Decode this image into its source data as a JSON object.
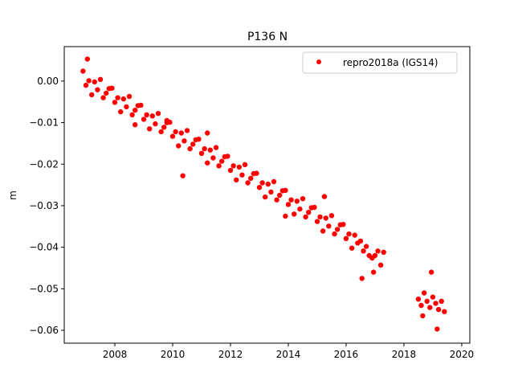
{
  "chart_data": {
    "type": "scatter",
    "title": "P136 N",
    "xlabel": "",
    "ylabel": "m",
    "xlim": [
      2006.25,
      2020.28
    ],
    "ylim": [
      -0.0631,
      0.0083
    ],
    "xticks": [
      2008,
      2010,
      2012,
      2014,
      2016,
      2018,
      2020
    ],
    "xtick_labels": [
      "2008",
      "2010",
      "2012",
      "2014",
      "2016",
      "2018",
      "2020"
    ],
    "yticks": [
      0.0,
      -0.01,
      -0.02,
      -0.03,
      -0.04,
      -0.05,
      -0.06
    ],
    "ytick_labels": [
      "0.00",
      "−0.01",
      "−0.02",
      "−0.03",
      "−0.04",
      "−0.05",
      "−0.06"
    ],
    "grid": false,
    "legend": {
      "placement": "top-right",
      "entries": [
        "repro2018a (IGS14)"
      ]
    },
    "series": [
      {
        "name": "repro2018a (IGS14)",
        "color": "#ff0000",
        "marker": "dot",
        "points": [
          [
            2006.9,
            0.0024
          ],
          [
            2007.0,
            -0.001
          ],
          [
            2007.1,
            0.0001
          ],
          [
            2007.2,
            -0.0033
          ],
          [
            2007.3,
            -0.0002
          ],
          [
            2007.4,
            -0.0021
          ],
          [
            2007.5,
            0.0004
          ],
          [
            2007.6,
            -0.004
          ],
          [
            2007.7,
            -0.0029
          ],
          [
            2007.8,
            -0.0018
          ],
          [
            2007.9,
            -0.0017
          ],
          [
            2008.0,
            -0.0051
          ],
          [
            2008.1,
            -0.004
          ],
          [
            2008.2,
            -0.0074
          ],
          [
            2008.3,
            -0.0043
          ],
          [
            2008.4,
            -0.0062
          ],
          [
            2008.5,
            -0.0037
          ],
          [
            2008.6,
            -0.0081
          ],
          [
            2008.7,
            -0.007
          ],
          [
            2008.8,
            -0.0059
          ],
          [
            2008.9,
            -0.0058
          ],
          [
            2009.0,
            -0.0092
          ],
          [
            2009.1,
            -0.0081
          ],
          [
            2009.2,
            -0.0115
          ],
          [
            2009.3,
            -0.0084
          ],
          [
            2009.4,
            -0.0103
          ],
          [
            2009.5,
            -0.0078
          ],
          [
            2009.6,
            -0.0122
          ],
          [
            2009.7,
            -0.0111
          ],
          [
            2009.8,
            -0.01
          ],
          [
            2009.9,
            -0.0099
          ],
          [
            2010.0,
            -0.0133
          ],
          [
            2010.1,
            -0.0122
          ],
          [
            2010.2,
            -0.0156
          ],
          [
            2010.3,
            -0.0125
          ],
          [
            2010.4,
            -0.0144
          ],
          [
            2010.5,
            -0.0119
          ],
          [
            2010.6,
            -0.0163
          ],
          [
            2010.7,
            -0.0152
          ],
          [
            2010.8,
            -0.0141
          ],
          [
            2010.9,
            -0.014
          ],
          [
            2011.0,
            -0.0174
          ],
          [
            2011.1,
            -0.0163
          ],
          [
            2011.2,
            -0.0197
          ],
          [
            2011.3,
            -0.0166
          ],
          [
            2011.4,
            -0.0185
          ],
          [
            2011.5,
            -0.016
          ],
          [
            2011.6,
            -0.0204
          ],
          [
            2011.7,
            -0.0193
          ],
          [
            2011.8,
            -0.0182
          ],
          [
            2011.9,
            -0.0181
          ],
          [
            2012.0,
            -0.0215
          ],
          [
            2012.1,
            -0.0204
          ],
          [
            2012.2,
            -0.0238
          ],
          [
            2012.3,
            -0.0207
          ],
          [
            2012.4,
            -0.0226
          ],
          [
            2012.5,
            -0.0201
          ],
          [
            2012.6,
            -0.0245
          ],
          [
            2012.7,
            -0.0234
          ],
          [
            2012.8,
            -0.0223
          ],
          [
            2012.9,
            -0.0222
          ],
          [
            2013.0,
            -0.0256
          ],
          [
            2013.1,
            -0.0245
          ],
          [
            2013.2,
            -0.0279
          ],
          [
            2013.3,
            -0.0248
          ],
          [
            2013.4,
            -0.0267
          ],
          [
            2013.5,
            -0.0242
          ],
          [
            2013.6,
            -0.0286
          ],
          [
            2013.7,
            -0.0275
          ],
          [
            2013.8,
            -0.0264
          ],
          [
            2013.9,
            -0.0263
          ],
          [
            2014.0,
            -0.0297
          ],
          [
            2014.1,
            -0.0286
          ],
          [
            2014.2,
            -0.032
          ],
          [
            2014.3,
            -0.0289
          ],
          [
            2014.4,
            -0.0308
          ],
          [
            2014.5,
            -0.0283
          ],
          [
            2014.6,
            -0.0327
          ],
          [
            2014.7,
            -0.0316
          ],
          [
            2014.8,
            -0.0305
          ],
          [
            2014.9,
            -0.0304
          ],
          [
            2015.0,
            -0.0338
          ],
          [
            2015.1,
            -0.0327
          ],
          [
            2015.2,
            -0.0361
          ],
          [
            2015.3,
            -0.033
          ],
          [
            2015.4,
            -0.0349
          ],
          [
            2015.5,
            -0.0324
          ],
          [
            2015.6,
            -0.0368
          ],
          [
            2015.7,
            -0.0357
          ],
          [
            2015.8,
            -0.0346
          ],
          [
            2015.9,
            -0.0345
          ],
          [
            2016.0,
            -0.0379
          ],
          [
            2016.1,
            -0.0368
          ],
          [
            2016.2,
            -0.0402
          ],
          [
            2016.3,
            -0.0371
          ],
          [
            2016.4,
            -0.039
          ],
          [
            2016.5,
            -0.0385
          ],
          [
            2016.6,
            -0.0409
          ],
          [
            2016.7,
            -0.0398
          ],
          [
            2016.8,
            -0.042
          ],
          [
            2016.9,
            -0.0426
          ],
          [
            2017.0,
            -0.042
          ],
          [
            2017.1,
            -0.0409
          ],
          [
            2017.2,
            -0.0443
          ],
          [
            2017.3,
            -0.0412
          ],
          [
            2018.5,
            -0.0525
          ],
          [
            2018.6,
            -0.054
          ],
          [
            2018.7,
            -0.051
          ],
          [
            2018.8,
            -0.053
          ],
          [
            2018.9,
            -0.0545
          ],
          [
            2019.0,
            -0.052
          ],
          [
            2019.1,
            -0.0535
          ],
          [
            2019.2,
            -0.055
          ],
          [
            2019.3,
            -0.053
          ],
          [
            2019.4,
            -0.0555
          ],
          [
            2007.05,
            0.0053
          ],
          [
            2010.35,
            -0.0228
          ],
          [
            2015.25,
            -0.0278
          ],
          [
            2016.55,
            -0.0475
          ],
          [
            2018.95,
            -0.046
          ],
          [
            2019.15,
            -0.0597
          ],
          [
            2018.65,
            -0.0565
          ],
          [
            2011.2,
            -0.0125
          ],
          [
            2009.8,
            -0.0095
          ],
          [
            2008.7,
            -0.0105
          ],
          [
            2013.9,
            -0.0325
          ],
          [
            2016.95,
            -0.046
          ]
        ]
      }
    ]
  }
}
